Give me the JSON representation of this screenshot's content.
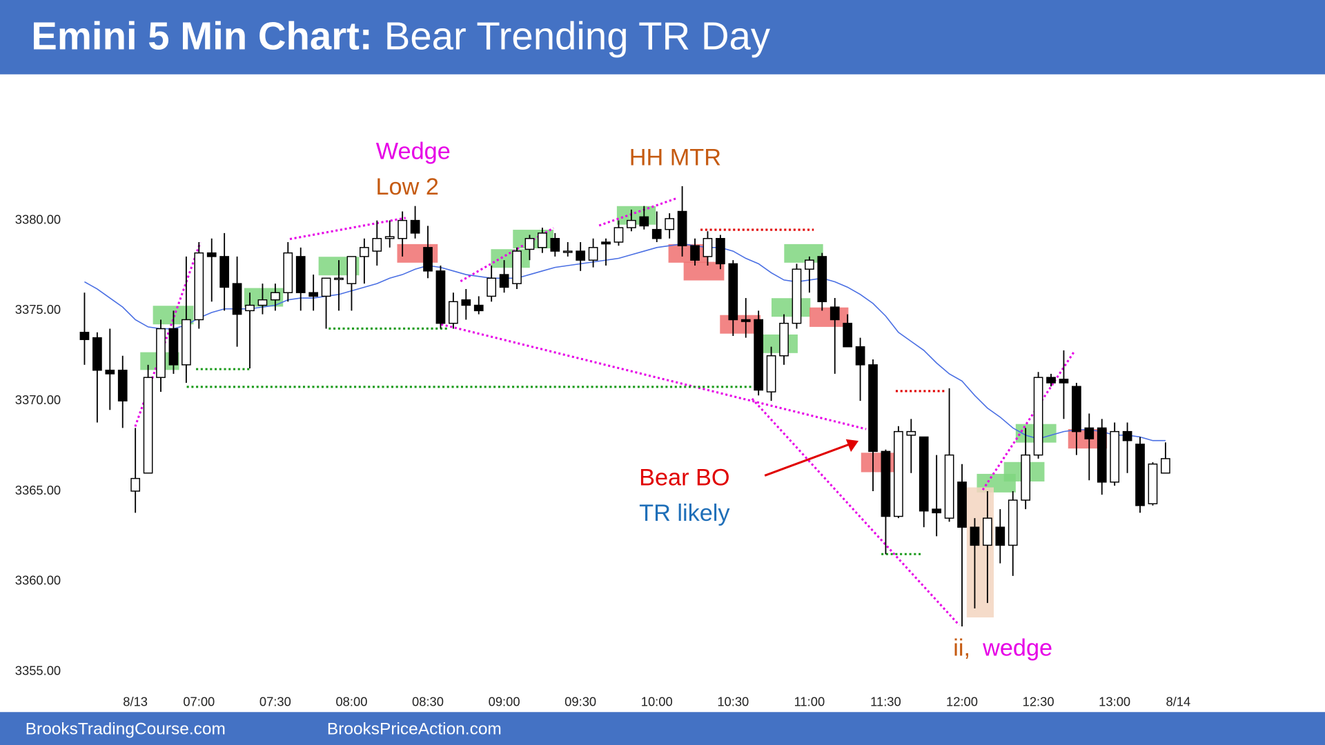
{
  "chart_data": {
    "type": "candlestick",
    "title": "Emini 5 Min Chart:",
    "subtitle": "Bear Trending TR Day",
    "footer": [
      "BrooksTradingCourse.com",
      "BrooksPriceAction.com"
    ],
    "annotations": [
      {
        "text": "Wedge",
        "color": "#e600e6"
      },
      {
        "text": "Low 2",
        "color": "#c55a11"
      },
      {
        "text": "HH MTR",
        "color": "#c55a11"
      },
      {
        "text": "Bear BO",
        "color": "#e00000"
      },
      {
        "text": "TR likely",
        "color": "#1f6fb8"
      },
      {
        "text": "ii,",
        "color": "#c55a11"
      },
      {
        "text": "wedge",
        "color": "#e600e6"
      }
    ],
    "open": [
      3373.8,
      3373.5,
      3371.7,
      3371.7,
      3365.0,
      3366.0,
      3371.3,
      3374.0,
      3372.0,
      3374.5,
      3378.2,
      3378.0,
      3376.5,
      3375.0,
      3375.3,
      3375.6,
      3376.0,
      3378.0,
      3376.0,
      3375.8,
      3376.8,
      3376.5,
      3378.0,
      3378.3,
      3379.0,
      3379.0,
      3380.0,
      3378.5,
      3377.2,
      3374.3,
      3375.6,
      3375.3,
      3375.8,
      3377.0,
      3376.5,
      3378.4,
      3378.5,
      3379.0,
      3378.3,
      3378.3,
      3377.8,
      3378.8,
      3378.8,
      3379.6,
      3380.2,
      3379.5,
      3379.5,
      3380.5,
      3378.6,
      3378.0,
      3379.0,
      3377.6,
      3374.5,
      3374.5,
      3370.5,
      3372.5,
      3374.3,
      3377.3,
      3378.0,
      3375.2,
      3374.3,
      3373.0,
      3372.0,
      3367.2,
      3363.6,
      3368.1,
      3368.0,
      3364.0,
      3363.5,
      3365.5,
      3363.0,
      3362.0,
      3363.0,
      3362.0,
      3364.5,
      3367.0,
      3371.3,
      3371.2,
      3370.8,
      3368.5,
      3368.5,
      3365.5,
      3368.3,
      3367.6,
      3364.3,
      3366.0
    ],
    "high": [
      3376.0,
      3373.8,
      3374.0,
      3372.5,
      3368.5,
      3372.0,
      3374.5,
      3375.0,
      3378.0,
      3378.8,
      3379.0,
      3379.3,
      3378.0,
      3376.0,
      3376.5,
      3376.5,
      3378.8,
      3378.5,
      3377.0,
      3376.5,
      3377.8,
      3378.0,
      3379.0,
      3380.0,
      3380.0,
      3380.5,
      3380.8,
      3379.7,
      3377.5,
      3376.0,
      3376.2,
      3375.8,
      3377.5,
      3377.8,
      3378.5,
      3379.2,
      3379.6,
      3379.3,
      3378.8,
      3378.8,
      3379.0,
      3379.0,
      3380.0,
      3380.6,
      3380.8,
      3380.5,
      3380.4,
      3381.9,
      3379.0,
      3379.4,
      3379.2,
      3377.8,
      3375.7,
      3375.0,
      3373.0,
      3374.8,
      3377.6,
      3378.0,
      3378.2,
      3375.7,
      3374.8,
      3373.5,
      3372.3,
      3367.3,
      3368.6,
      3369.0,
      3368.0,
      3367.0,
      3370.7,
      3366.5,
      3363.5,
      3365.0,
      3364.0,
      3365.0,
      3368.5,
      3371.6,
      3371.5,
      3372.8,
      3371.0,
      3369.3,
      3369.0,
      3368.8,
      3368.8,
      3368.0,
      3366.6,
      3367.7
    ],
    "low": [
      3372.0,
      3368.8,
      3369.5,
      3368.5,
      3363.8,
      3366.0,
      3370.5,
      3371.5,
      3371.0,
      3374.0,
      3375.5,
      3375.0,
      3373.0,
      3371.8,
      3374.8,
      3375.0,
      3375.5,
      3375.0,
      3375.0,
      3374.0,
      3375.0,
      3375.0,
      3376.5,
      3377.5,
      3378.5,
      3378.0,
      3379.0,
      3376.8,
      3374.0,
      3374.0,
      3374.5,
      3374.8,
      3375.5,
      3376.0,
      3376.2,
      3377.8,
      3378.2,
      3378.0,
      3378.0,
      3377.2,
      3377.4,
      3377.5,
      3378.6,
      3379.4,
      3379.5,
      3378.8,
      3379.0,
      3378.0,
      3377.5,
      3377.5,
      3377.3,
      3373.6,
      3373.5,
      3370.3,
      3370.0,
      3372.0,
      3374.0,
      3376.0,
      3375.0,
      3371.5,
      3373.0,
      3370.0,
      3365.0,
      3361.5,
      3363.5,
      3366.0,
      3363.0,
      3362.5,
      3363.3,
      3357.5,
      3358.5,
      3358.8,
      3361.0,
      3360.3,
      3364.0,
      3366.8,
      3370.8,
      3369.0,
      3367.0,
      3365.6,
      3364.8,
      3365.3,
      3366.0,
      3363.8,
      3364.2,
      3366.0
    ],
    "close": [
      3373.4,
      3371.7,
      3371.5,
      3370.0,
      3365.7,
      3371.3,
      3374.0,
      3372.0,
      3374.5,
      3378.2,
      3378.0,
      3376.3,
      3374.8,
      3375.3,
      3375.6,
      3376.0,
      3378.2,
      3376.0,
      3375.8,
      3376.8,
      3376.8,
      3378.0,
      3378.5,
      3379.0,
      3379.1,
      3380.0,
      3379.3,
      3377.2,
      3374.3,
      3375.5,
      3375.3,
      3375.0,
      3376.8,
      3376.3,
      3378.3,
      3379.0,
      3379.3,
      3378.3,
      3378.3,
      3377.8,
      3378.5,
      3378.7,
      3379.6,
      3380.0,
      3379.7,
      3379.0,
      3380.1,
      3378.6,
      3377.8,
      3379.0,
      3377.6,
      3374.5,
      3374.4,
      3370.6,
      3372.5,
      3374.3,
      3377.3,
      3377.8,
      3375.5,
      3374.5,
      3373.0,
      3372.0,
      3367.2,
      3363.6,
      3368.3,
      3368.3,
      3363.9,
      3363.8,
      3367.0,
      3363.0,
      3362.0,
      3363.5,
      3362.0,
      3364.5,
      3367.0,
      3371.3,
      3371.0,
      3371.0,
      3368.3,
      3367.9,
      3365.5,
      3368.3,
      3367.8,
      3364.2,
      3366.5,
      3366.8
    ],
    "ema": [
      3376.6,
      3376.2,
      3375.7,
      3375.2,
      3374.5,
      3374.1,
      3374.0,
      3374.0,
      3374.2,
      3374.6,
      3374.9,
      3375.1,
      3375.1,
      3375.1,
      3375.2,
      3375.3,
      3375.6,
      3375.7,
      3375.7,
      3375.8,
      3375.9,
      3376.1,
      3376.3,
      3376.5,
      3376.8,
      3377.0,
      3377.3,
      3377.5,
      3377.4,
      3377.2,
      3377.0,
      3376.9,
      3376.8,
      3376.8,
      3376.8,
      3377.0,
      3377.2,
      3377.4,
      3377.5,
      3377.6,
      3377.7,
      3377.8,
      3377.9,
      3378.1,
      3378.3,
      3378.5,
      3378.6,
      3378.7,
      3378.6,
      3378.5,
      3378.5,
      3378.3,
      3377.9,
      3377.6,
      3377.1,
      3376.7,
      3376.6,
      3376.7,
      3376.8,
      3376.6,
      3376.3,
      3375.9,
      3375.4,
      3374.7,
      3373.8,
      3373.3,
      3372.8,
      3372.1,
      3371.5,
      3371.1,
      3370.3,
      3369.6,
      3369.1,
      3368.5,
      3368.1,
      3367.9,
      3368.1,
      3368.3,
      3368.4,
      3368.4,
      3368.3,
      3368.1,
      3368.1,
      3368.0,
      3367.8,
      3367.8
    ],
    "ema_color": "#4a6fe3",
    "up_color": "#ffffff",
    "down_color": "#000000",
    "xlim": [
      -4,
      90
    ],
    "ylim": [
      3354,
      3388
    ],
    "xticks": [
      {
        "value": 4,
        "label": "8/13"
      },
      {
        "value": 9,
        "label": "07:00"
      },
      {
        "value": 15,
        "label": "07:30"
      },
      {
        "value": 21,
        "label": "08:00"
      },
      {
        "value": 27,
        "label": "08:30"
      },
      {
        "value": 33,
        "label": "09:00"
      },
      {
        "value": 39,
        "label": "09:30"
      },
      {
        "value": 45,
        "label": "10:00"
      },
      {
        "value": 51,
        "label": "10:30"
      },
      {
        "value": 57,
        "label": "11:00"
      },
      {
        "value": 63,
        "label": "11:30"
      },
      {
        "value": 69,
        "label": "12:00"
      },
      {
        "value": 75,
        "label": "12:30"
      },
      {
        "value": 81,
        "label": "13:00"
      },
      {
        "value": 86,
        "label": "8/14"
      }
    ],
    "yticks": [
      {
        "value": 3355,
        "label": "3355.00"
      },
      {
        "value": 3360,
        "label": "3360.00"
      },
      {
        "value": 3365,
        "label": "3365.00"
      },
      {
        "value": 3370,
        "label": "3370.00"
      },
      {
        "value": 3375,
        "label": "3375.00"
      },
      {
        "value": 3380,
        "label": "3380.00"
      }
    ],
    "grid": false
  }
}
